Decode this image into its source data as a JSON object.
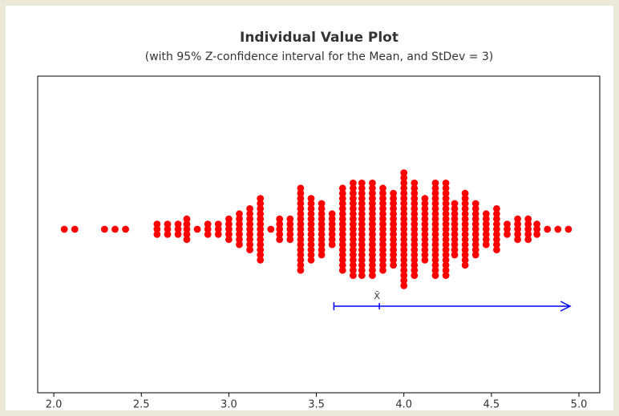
{
  "chart_data": {
    "type": "dotplot",
    "title": "Individual Value Plot",
    "subtitle": "(with 95% Z-confidence interval for the Mean, and StDev = 3)",
    "color": "#ff0000",
    "x": [
      2.06,
      2.12,
      2.29,
      2.35,
      2.41,
      2.59,
      2.65,
      2.71,
      2.76,
      2.82,
      2.88,
      2.94,
      3.0,
      3.06,
      3.12,
      3.18,
      3.24,
      3.29,
      3.35,
      3.41,
      3.47,
      3.53,
      3.59,
      3.65,
      3.71,
      3.76,
      3.82,
      3.88,
      3.94,
      4.0,
      4.06,
      4.12,
      4.18,
      4.24,
      4.29,
      4.35,
      4.41,
      4.47,
      4.53,
      4.59,
      4.65,
      4.71,
      4.76,
      4.82,
      4.88,
      4.94
    ],
    "counts": [
      1,
      1,
      1,
      1,
      1,
      3,
      3,
      3,
      5,
      1,
      3,
      3,
      5,
      7,
      9,
      13,
      1,
      5,
      5,
      17,
      13,
      11,
      7,
      17,
      19,
      19,
      19,
      17,
      15,
      23,
      19,
      13,
      19,
      19,
      11,
      15,
      11,
      7,
      9,
      3,
      5,
      5,
      3,
      1,
      1,
      1
    ],
    "ci": {
      "mean": 3.86,
      "lower": 3.6,
      "upper": 4.95,
      "color": "#0000ff",
      "mean_label": "X̄"
    },
    "xlim": [
      1.908,
      5.119
    ],
    "xticks": [
      {
        "value": 2.0,
        "label": "2.0"
      },
      2.5,
      {
        "value": 3.0,
        "label": "3.0"
      },
      3.5,
      {
        "value": 4.0,
        "label": "4.0"
      },
      4.5,
      {
        "value": 5.0,
        "label": "5.0"
      }
    ]
  }
}
